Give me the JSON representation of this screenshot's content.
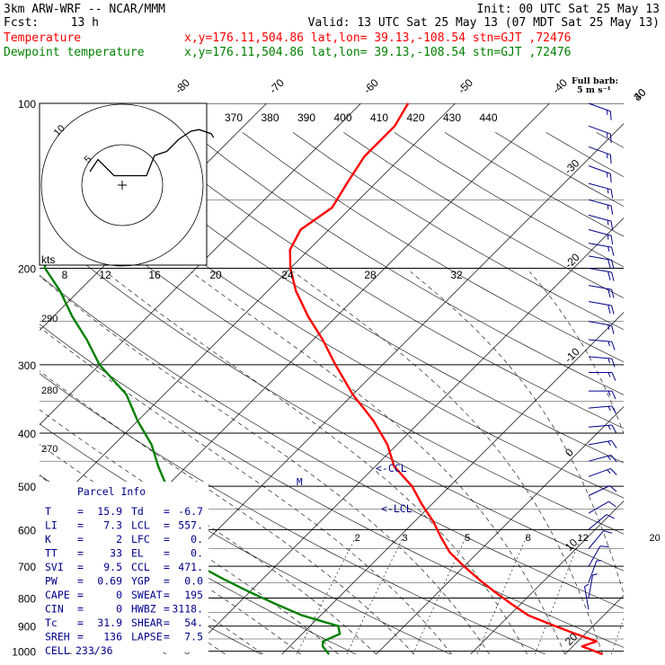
{
  "header": {
    "model": "3km ARW-WRF -- NCAR/MMM",
    "init": "Init: 00 UTC Sat 25 May 13",
    "fcst_label": "Fcst:",
    "fcst_value": "13 h",
    "valid": "Valid: 13 UTC Sat 25 May 13 (07 MDT Sat 25 May 13)",
    "temp_label": "Temperature",
    "temp_loc": "x,y=176.11,504.86   lat,lon= 39.13,-108.54  stn=GJT ,72476",
    "dew_label": "Dewpoint temperature",
    "dew_loc": "x,y=176.11,504.86   lat,lon= 39.13,-108.54  stn=GJT ,72476",
    "full_barb_1": "Full barb:",
    "full_barb_2": "5 m s⁻¹"
  },
  "colors": {
    "temperature": "#ff0000",
    "dewpoint": "#008000",
    "parcel": "#00008b",
    "barbs": "#00008b",
    "grid": "#000000"
  },
  "parcel_info": {
    "title": "Parcel Info",
    "rows": [
      {
        "k1": "T",
        "v1": "15.9",
        "k2": "Td",
        "v2": "-6.7"
      },
      {
        "k1": "LI",
        "v1": "7.3",
        "k2": "LCL",
        "v2": "557."
      },
      {
        "k1": "K",
        "v1": "2",
        "k2": "LFC",
        "v2": "0."
      },
      {
        "k1": "TT",
        "v1": "33",
        "k2": "EL",
        "v2": "0."
      },
      {
        "k1": "SVI",
        "v1": "9.5",
        "k2": "CCL",
        "v2": "471."
      },
      {
        "k1": "PW",
        "v1": "0.69",
        "k2": "YGP",
        "v2": "0.0"
      },
      {
        "k1": "CAPE",
        "v1": "0",
        "k2": "SWEAT",
        "v2": "195"
      },
      {
        "k1": "CIN",
        "v1": "0",
        "k2": "HWBZ",
        "v2": "3118."
      },
      {
        "k1": "Tc",
        "v1": "31.9",
        "k2": "SHEAR",
        "v2": "54."
      },
      {
        "k1": "SREH",
        "v1": "136",
        "k2": "LAPSE",
        "v2": "7.5"
      },
      {
        "k1": "CELL",
        "v1": "233/36",
        "k2": "",
        "v2": ""
      }
    ]
  },
  "annotations": {
    "ccl": "<-CCL",
    "lcl": "<-LCL",
    "m": "M"
  },
  "hodograph": {
    "speed_rings": [
      "kts",
      "8",
      "12",
      "16",
      "20",
      "24",
      "28",
      "32"
    ],
    "ring_labels": [
      "8",
      "12",
      "16",
      "20",
      "24",
      "28",
      "32"
    ],
    "ring_label_kts": "kts",
    "circle_labels": [
      "10",
      "5"
    ],
    "trace": [
      [
        -4,
        -1
      ],
      [
        -3,
        0.5
      ],
      [
        -1,
        -1.5
      ],
      [
        1.5,
        -1.5
      ],
      [
        3,
        -1.5
      ],
      [
        4,
        1
      ],
      [
        5.5,
        1.5
      ],
      [
        7,
        3
      ],
      [
        8.5,
        4
      ],
      [
        9.5,
        4.2
      ],
      [
        11,
        3.7
      ],
      [
        11.3,
        3.2
      ]
    ]
  },
  "theta_labels": [
    "370",
    "380",
    "390",
    "400",
    "410",
    "420",
    "430",
    "440"
  ],
  "isotherm_labels": [
    "-80",
    "-70",
    "-60",
    "-50",
    "-40",
    "-30",
    "-20",
    "-10",
    "0",
    "10",
    "20",
    "30",
    "40"
  ],
  "dry_adiabat_labels": [
    "290",
    "280",
    "270"
  ],
  "mixing_ratio_labels": [
    "2",
    "3",
    "5",
    "8",
    "12",
    "20"
  ],
  "chart_data": {
    "type": "line",
    "xlabel": "",
    "ylabel": "",
    "pressure_levels": [
      "100",
      "200",
      "300",
      "400",
      "500",
      "600",
      "700",
      "800",
      "900",
      "1000"
    ],
    "series": [
      {
        "name": "Temperature",
        "color": "#ff0000",
        "points": [
          [
            1013,
            24
          ],
          [
            980,
            21
          ],
          [
            960,
            22
          ],
          [
            930,
            19
          ],
          [
            900,
            16
          ],
          [
            860,
            12
          ],
          [
            820,
            9
          ],
          [
            780,
            6
          ],
          [
            740,
            3
          ],
          [
            700,
            0
          ],
          [
            660,
            -3
          ],
          [
            620,
            -5.5
          ],
          [
            580,
            -8
          ],
          [
            540,
            -11
          ],
          [
            500,
            -14
          ],
          [
            460,
            -18
          ],
          [
            420,
            -21
          ],
          [
            380,
            -25
          ],
          [
            340,
            -30
          ],
          [
            300,
            -35
          ],
          [
            270,
            -39
          ],
          [
            245,
            -43
          ],
          [
            220,
            -47
          ],
          [
            200,
            -50
          ],
          [
            185,
            -52
          ],
          [
            170,
            -53
          ],
          [
            155,
            -52
          ],
          [
            140,
            -53
          ],
          [
            125,
            -54
          ],
          [
            110,
            -54
          ],
          [
            100,
            -55
          ]
        ]
      },
      {
        "name": "Dewpoint temperature",
        "color": "#008000",
        "points": [
          [
            1013,
            -5
          ],
          [
            980,
            -6.5
          ],
          [
            960,
            -7
          ],
          [
            930,
            -6
          ],
          [
            900,
            -7
          ],
          [
            860,
            -12
          ],
          [
            820,
            -16
          ],
          [
            780,
            -20
          ],
          [
            740,
            -24
          ],
          [
            700,
            -28
          ],
          [
            660,
            -32
          ],
          [
            620,
            -34
          ],
          [
            580,
            -37
          ],
          [
            540,
            -39
          ],
          [
            500,
            -40
          ],
          [
            460,
            -43
          ],
          [
            420,
            -46
          ],
          [
            380,
            -50
          ],
          [
            340,
            -54
          ],
          [
            300,
            -60
          ],
          [
            270,
            -64
          ],
          [
            245,
            -68
          ],
          [
            220,
            -72
          ],
          [
            200,
            -76
          ],
          [
            185,
            -78
          ],
          [
            170,
            -79
          ],
          [
            155,
            -78
          ],
          [
            140,
            -79
          ],
          [
            125,
            -80
          ],
          [
            110,
            -82
          ],
          [
            100,
            -83
          ]
        ]
      }
    ],
    "wind_barbs": [
      {
        "p": 100,
        "dir": 290,
        "spd": 15
      },
      {
        "p": 110,
        "dir": 290,
        "spd": 15
      },
      {
        "p": 120,
        "dir": 290,
        "spd": 15
      },
      {
        "p": 130,
        "dir": 290,
        "spd": 15
      },
      {
        "p": 140,
        "dir": 285,
        "spd": 15
      },
      {
        "p": 150,
        "dir": 285,
        "spd": 15
      },
      {
        "p": 160,
        "dir": 285,
        "spd": 15
      },
      {
        "p": 170,
        "dir": 285,
        "spd": 15
      },
      {
        "p": 180,
        "dir": 280,
        "spd": 15
      },
      {
        "p": 190,
        "dir": 280,
        "spd": 20
      },
      {
        "p": 200,
        "dir": 280,
        "spd": 20
      },
      {
        "p": 215,
        "dir": 280,
        "spd": 20
      },
      {
        "p": 230,
        "dir": 280,
        "spd": 20
      },
      {
        "p": 250,
        "dir": 280,
        "spd": 15
      },
      {
        "p": 270,
        "dir": 275,
        "spd": 15
      },
      {
        "p": 290,
        "dir": 275,
        "spd": 15
      },
      {
        "p": 310,
        "dir": 270,
        "spd": 15
      },
      {
        "p": 335,
        "dir": 270,
        "spd": 15
      },
      {
        "p": 360,
        "dir": 265,
        "spd": 15
      },
      {
        "p": 390,
        "dir": 265,
        "spd": 15
      },
      {
        "p": 420,
        "dir": 260,
        "spd": 15
      },
      {
        "p": 450,
        "dir": 255,
        "spd": 15
      },
      {
        "p": 480,
        "dir": 250,
        "spd": 15
      },
      {
        "p": 520,
        "dir": 245,
        "spd": 10
      },
      {
        "p": 560,
        "dir": 240,
        "spd": 10
      },
      {
        "p": 600,
        "dir": 230,
        "spd": 10
      },
      {
        "p": 650,
        "dir": 220,
        "spd": 10
      },
      {
        "p": 700,
        "dir": 210,
        "spd": 10
      },
      {
        "p": 750,
        "dir": 200,
        "spd": 5
      },
      {
        "p": 800,
        "dir": 190,
        "spd": 5
      },
      {
        "p": 840,
        "dir": 170,
        "spd": 5
      }
    ]
  }
}
